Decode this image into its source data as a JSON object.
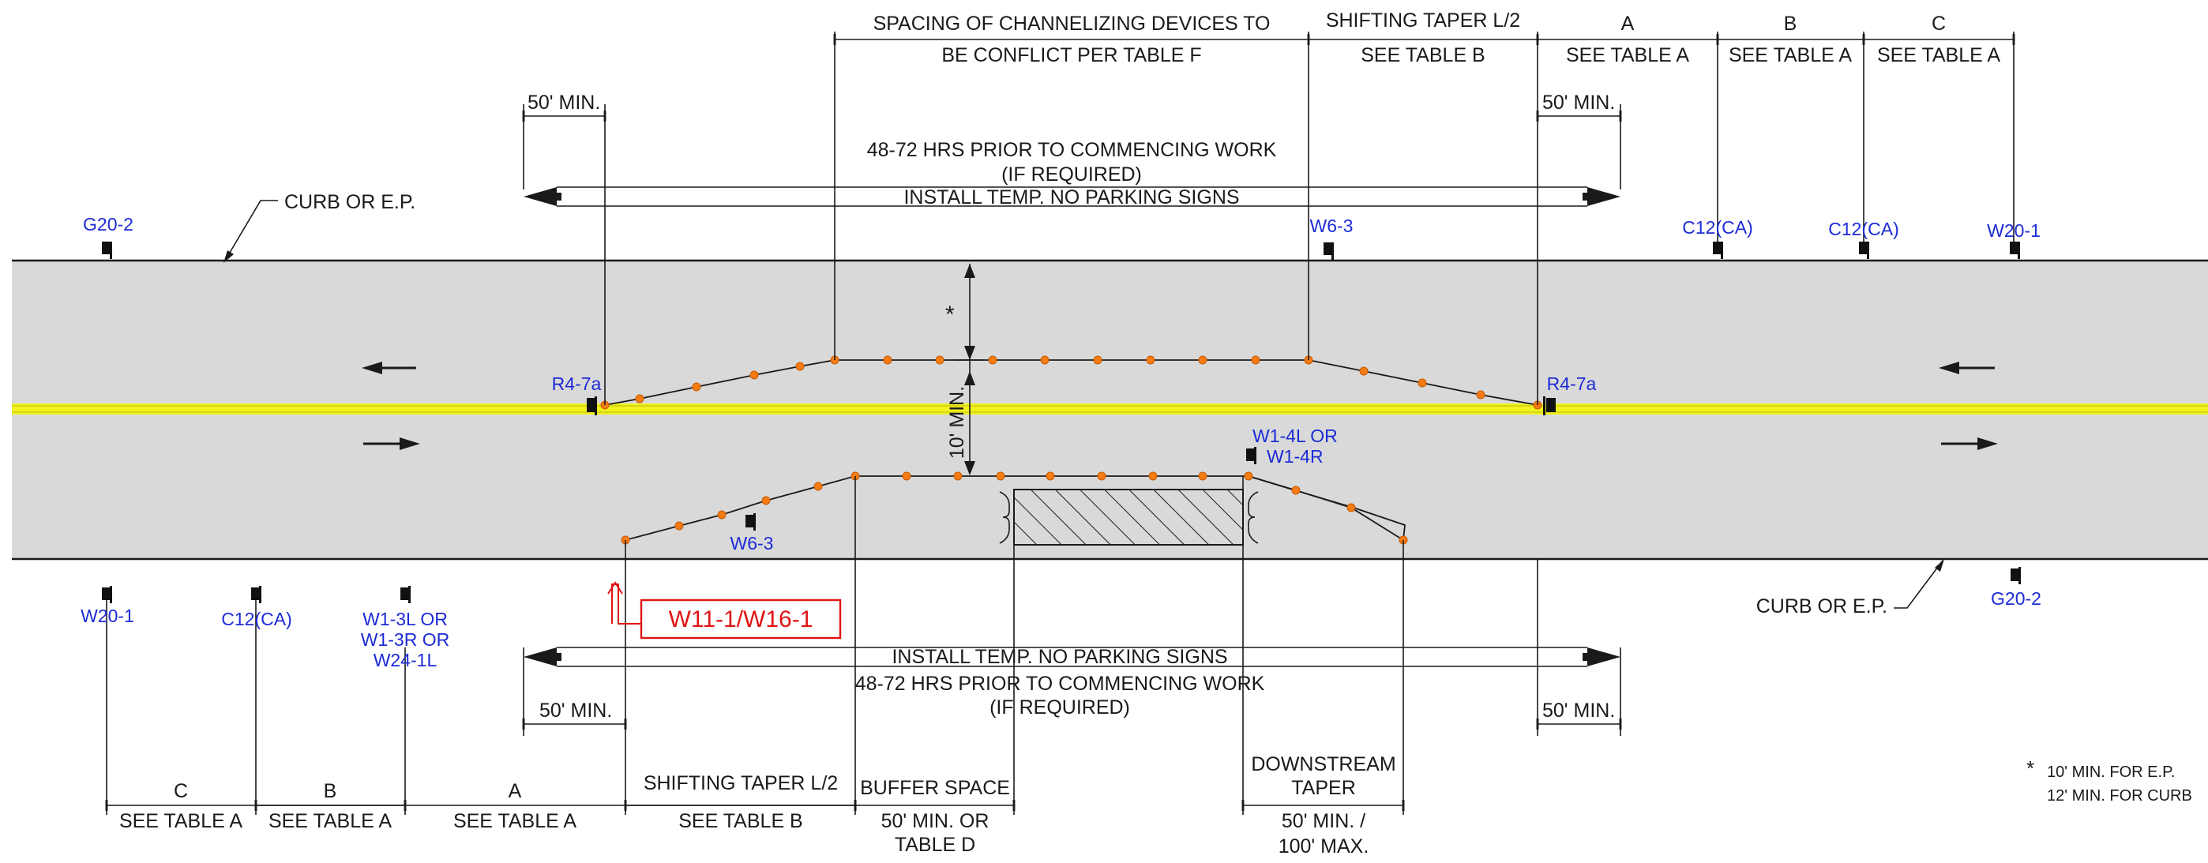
{
  "labels": {
    "top_spacing_1": "SPACING OF CHANNELIZING DEVICES TO",
    "top_spacing_2": "BE CONFLICT PER TABLE F",
    "top_shift_1": "SHIFTING TAPER L/2",
    "top_shift_2": "SEE TABLE B",
    "top_A_1": "A",
    "top_A_2": "SEE TABLE A",
    "top_B_1": "B",
    "top_B_2": "SEE TABLE A",
    "top_C_1": "C",
    "top_C_2": "SEE TABLE A",
    "min50_tl": "50' MIN.",
    "min50_tr": "50' MIN.",
    "min50_bl": "50' MIN.",
    "min50_br": "50' MIN.",
    "top_hrs_1": "48-72 HRS PRIOR TO COMMENCING WORK",
    "top_hrs_2": "(IF REQUIRED)",
    "top_install": "INSTALL TEMP. NO PARKING SIGNS",
    "bot_install": "INSTALL TEMP. NO PARKING SIGNS",
    "bot_hrs_1": "48-72 HRS PRIOR TO COMMENCING WORK",
    "bot_hrs_2": "(IF REQUIRED)",
    "curb_top": "CURB OR E.P.",
    "curb_bot": "CURB OR E.P.",
    "ten_min": "10' MIN.",
    "asterisk": "*",
    "bot_C_1": "C",
    "bot_C_2": "SEE TABLE A",
    "bot_B_1": "B",
    "bot_B_2": "SEE TABLE A",
    "bot_A_1": "A",
    "bot_A_2": "SEE TABLE A",
    "bot_shift_1": "SHIFTING TAPER L/2",
    "bot_shift_2": "SEE TABLE B",
    "buffer_1": "BUFFER SPACE",
    "buffer_2": "50' MIN. OR",
    "buffer_3": "TABLE D",
    "down_1": "DOWNSTREAM",
    "down_2": "TAPER",
    "down_3": "50' MIN. /",
    "down_4": "100' MAX.",
    "note_star": "*",
    "note_1": "10' MIN. FOR E.P.",
    "note_2": "12' MIN. FOR CURB",
    "callout": "W11-1/W16-1"
  },
  "signs": {
    "g20_2_top": "G20-2",
    "w6_3_top": "W6-3",
    "c12_top_1": "C12(CA)",
    "c12_top_2": "C12(CA)",
    "w20_1_top": "W20-1",
    "r4_7a_left": "R4-7a",
    "r4_7a_right": "R4-7a",
    "w1_4_1": "W1-4L OR",
    "w1_4_2": "W1-4R",
    "w6_3_bot": "W6-3",
    "w20_1_bot": "W20-1",
    "c12_bot": "C12(CA)",
    "w1_3_1": "W1-3L OR",
    "w1_3_2": "W1-3R OR",
    "w1_3_3": "W24-1L",
    "g20_2_bot": "G20-2"
  },
  "colors": {
    "road": "#d9d9d9",
    "centerline": "#f2f21f",
    "cone": "#f57c14",
    "sign_text": "#1d2bd6",
    "callout": "#e01414"
  },
  "icons": [
    "arrow-left-icon",
    "arrow-right-icon",
    "sign-post-icon",
    "traffic-cone-icon"
  ]
}
